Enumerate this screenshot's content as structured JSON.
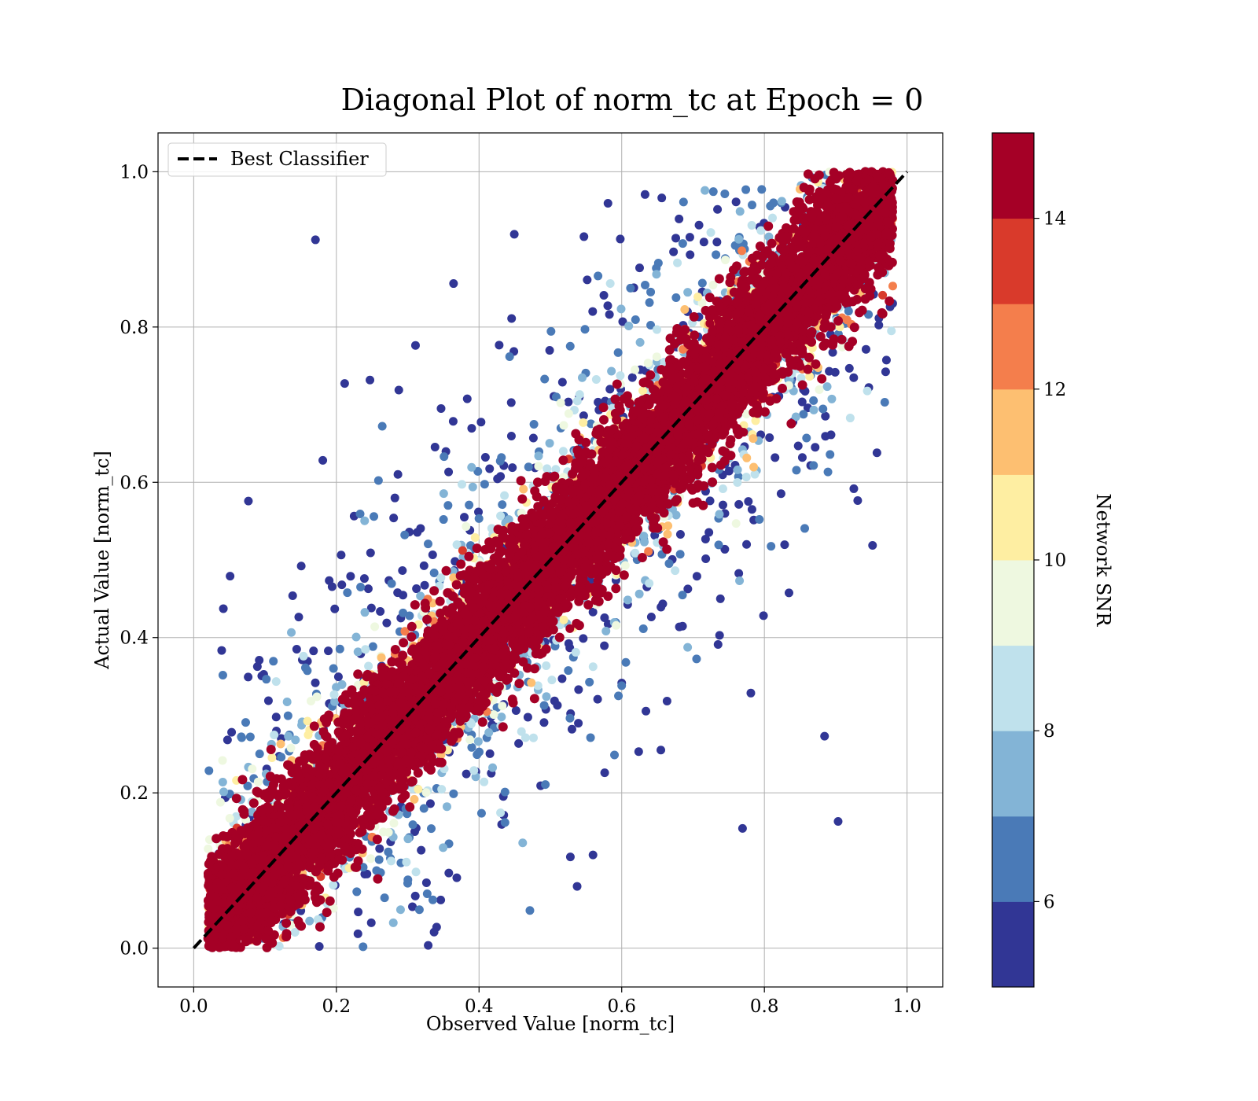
{
  "chart_data": {
    "type": "scatter",
    "title": "Diagonal Plot of norm_tc at Epoch = 0",
    "xlabel": "Observed Value [norm_tc]",
    "ylabel": "Actual Value [norm_tc]",
    "xlim": [
      -0.05,
      1.05
    ],
    "ylim": [
      -0.05,
      1.05
    ],
    "x_ticks": [
      "0.0",
      "0.2",
      "0.4",
      "0.6",
      "0.8",
      "1.0"
    ],
    "y_ticks": [
      "0.0",
      "0.2",
      "0.4",
      "0.6",
      "0.8",
      "1.0"
    ],
    "grid": true,
    "legend": {
      "placement": "upper-left",
      "entries": [
        "Best Classifier"
      ]
    },
    "series": [
      {
        "name": "Best Classifier",
        "kind": "line",
        "style": "dashed",
        "color": "#000000",
        "x": [
          0.0,
          1.0
        ],
        "y": [
          0.0,
          1.0
        ]
      }
    ],
    "scatter": {
      "points": "dense cloud of samples spread around the diagonal y = x; high Network SNR points tightly along diagonal, low Network SNR points scattered away",
      "x_range": [
        0.0,
        1.0
      ],
      "y_range": [
        0.0,
        1.0
      ],
      "color_variable": "Network SNR"
    },
    "colorbar": {
      "label": "Network SNR",
      "ticks": [
        "6",
        "8",
        "10",
        "12",
        "14"
      ],
      "range": [
        5,
        15
      ],
      "bins": [
        {
          "from": 5,
          "to": 6,
          "color": "#313695"
        },
        {
          "from": 6,
          "to": 7,
          "color": "#4a7ab7"
        },
        {
          "from": 7,
          "to": 8,
          "color": "#83b4d6"
        },
        {
          "from": 8,
          "to": 9,
          "color": "#bfe1ec"
        },
        {
          "from": 9,
          "to": 10,
          "color": "#eef8e0"
        },
        {
          "from": 10,
          "to": 11,
          "color": "#feeea2"
        },
        {
          "from": 11,
          "to": 12,
          "color": "#fdbf71"
        },
        {
          "from": 12,
          "to": 13,
          "color": "#f47e4c"
        },
        {
          "from": 13,
          "to": 14,
          "color": "#d93a2b"
        },
        {
          "from": 14,
          "to": 15,
          "color": "#a50026"
        }
      ]
    }
  }
}
